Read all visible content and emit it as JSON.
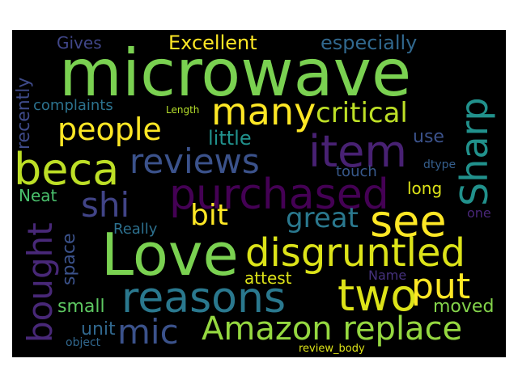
{
  "palette": {
    "background": "#000000",
    "page": "#ffffff"
  },
  "words": {
    "microwave": {
      "text": "microwave",
      "color": "#7ad151"
    },
    "love": {
      "text": "Love",
      "color": "#7ad151"
    },
    "purchased": {
      "text": "purchased",
      "color": "#440154"
    },
    "item": {
      "text": "item",
      "color": "#482173"
    },
    "beca": {
      "text": "beca",
      "color": "#bddf26"
    },
    "many": {
      "text": "many",
      "color": "#fde725"
    },
    "critical": {
      "text": "critical",
      "color": "#bddf26"
    },
    "people": {
      "text": "people",
      "color": "#fde725"
    },
    "reviews": {
      "text": "reviews",
      "color": "#3b528b"
    },
    "sharp": {
      "text": "Sharp",
      "color": "#21918c"
    },
    "shi": {
      "text": "shi",
      "color": "#414487"
    },
    "see": {
      "text": "see",
      "color": "#fde725"
    },
    "bit": {
      "text": "bit",
      "color": "#fde725"
    },
    "great": {
      "text": "great",
      "color": "#2a788e"
    },
    "disgruntled": {
      "text": "disgruntled",
      "color": "#dce319"
    },
    "reasons": {
      "text": "reasons",
      "color": "#2a788e"
    },
    "two": {
      "text": "two",
      "color": "#dce319"
    },
    "put": {
      "text": "put",
      "color": "#fde725"
    },
    "bought": {
      "text": "bought",
      "color": "#482878"
    },
    "amazon_replace": {
      "text": "Amazon replace",
      "color": "#95d840"
    },
    "mic": {
      "text": "mic",
      "color": "#3b528b"
    },
    "excellent": {
      "text": "Excellent",
      "color": "#fde725"
    },
    "especially": {
      "text": "especially",
      "color": "#31688e"
    },
    "gives": {
      "text": "Gives",
      "color": "#404688"
    },
    "recently": {
      "text": "recently",
      "color": "#3e4a89"
    },
    "complaints": {
      "text": "complaints",
      "color": "#2c728e"
    },
    "length": {
      "text": "Length",
      "color": "#b5de2b"
    },
    "little": {
      "text": "little",
      "color": "#21918c"
    },
    "use": {
      "text": "use",
      "color": "#3b528b"
    },
    "dtype": {
      "text": "dtype",
      "color": "#355f8d"
    },
    "touch": {
      "text": "touch",
      "color": "#38598c"
    },
    "long": {
      "text": "long",
      "color": "#dde318"
    },
    "neat": {
      "text": "Neat",
      "color": "#4ac16d"
    },
    "one": {
      "text": "one",
      "color": "#482677"
    },
    "really": {
      "text": "Really",
      "color": "#2d708e"
    },
    "space": {
      "text": "space",
      "color": "#3b528b"
    },
    "attest": {
      "text": "attest",
      "color": "#dde318"
    },
    "name": {
      "text": "Name",
      "color": "#46327e"
    },
    "small": {
      "text": "small",
      "color": "#5ec962"
    },
    "moved": {
      "text": "moved",
      "color": "#84d44b"
    },
    "unit": {
      "text": "unit",
      "color": "#31688e"
    },
    "object": {
      "text": "object",
      "color": "#31688e"
    },
    "review_body": {
      "text": "review_body",
      "color": "#dde318"
    }
  }
}
